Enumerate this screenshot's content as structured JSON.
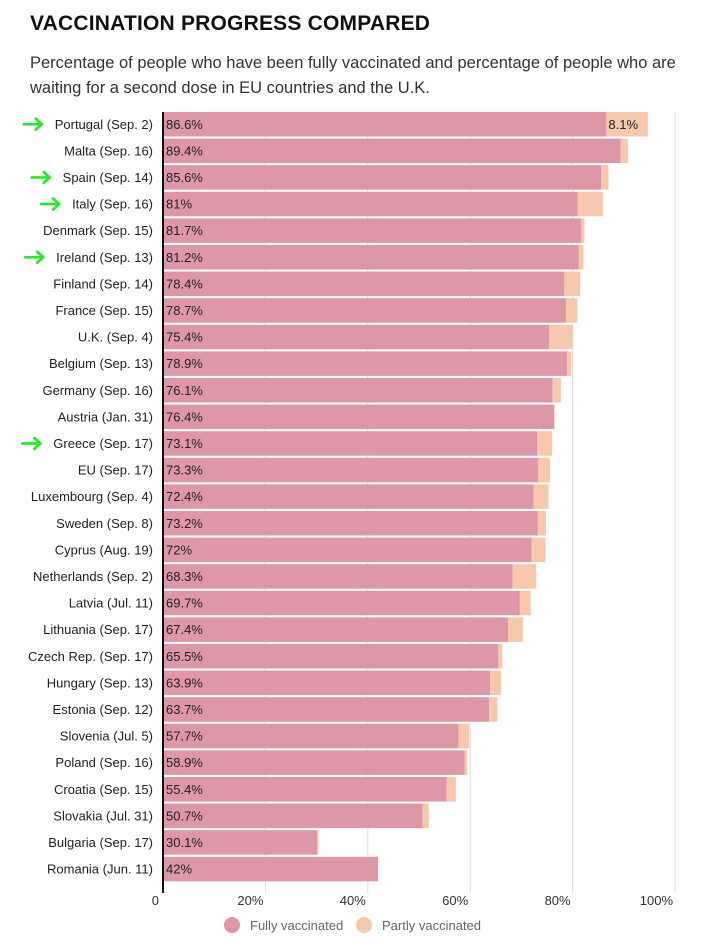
{
  "title": "VACCINATION PROGRESS COMPARED",
  "subtitle": "Percentage of people who have been fully vaccinated and percentage of people who are waiting for a second dose in EU countries and the U.K.",
  "colors": {
    "fully": "#de97a6",
    "partly": "#f6c8ac",
    "arrow": "#1df01d",
    "axis": "#111111",
    "grid": "#dddddd"
  },
  "legend": {
    "fully_label": "Fully vaccinated",
    "partly_label": "Partly vaccinated"
  },
  "chart_data": {
    "type": "bar",
    "orientation": "horizontal",
    "stacked": true,
    "xlim": [
      0,
      100
    ],
    "x_ticks": [
      "0",
      "20%",
      "40%",
      "60%",
      "80%",
      "100%"
    ],
    "grid": true,
    "legend_position": "bottom",
    "categories": [
      "Portugal (Sep. 2)",
      "Malta (Sep. 16)",
      "Spain (Sep. 14)",
      "Italy (Sep. 16)",
      "Denmark (Sep. 15)",
      "Ireland (Sep. 13)",
      "Finland (Sep. 14)",
      "France (Sep. 15)",
      "U.K. (Sep. 4)",
      "Belgium (Sep. 13)",
      "Germany (Sep. 16)",
      "Austria (Jan. 31)",
      "Greece (Sep. 17)",
      "EU (Sep. 17)",
      "Luxembourg (Sep. 4)",
      "Sweden (Sep. 8)",
      "Cyprus (Aug. 19)",
      "Netherlands (Sep. 2)",
      "Latvia (Jul. 11)",
      "Lithuania (Sep. 17)",
      "Czech Rep. (Sep. 17)",
      "Hungary (Sep. 13)",
      "Estonia (Sep. 12)",
      "Slovenia (Jul. 5)",
      "Poland (Sep. 16)",
      "Croatia (Sep. 15)",
      "Slovakia (Jul. 31)",
      "Bulgaria (Sep. 17)",
      "Romania (Jun. 11)"
    ],
    "highlighted": [
      true,
      false,
      true,
      true,
      false,
      true,
      false,
      false,
      false,
      false,
      false,
      false,
      true,
      false,
      false,
      false,
      false,
      false,
      false,
      false,
      false,
      false,
      false,
      false,
      false,
      false,
      false,
      false,
      false
    ],
    "series": [
      {
        "name": "Fully vaccinated",
        "values": [
          86.6,
          89.4,
          85.6,
          81,
          81.7,
          81.2,
          78.4,
          78.7,
          75.4,
          78.9,
          76.1,
          76.4,
          73.1,
          73.3,
          72.4,
          73.2,
          72,
          68.3,
          69.7,
          67.4,
          65.5,
          63.9,
          63.7,
          57.7,
          58.9,
          55.4,
          50.7,
          30.1,
          42
        ],
        "labels": [
          "86.6%",
          "89.4%",
          "85.6%",
          "81%",
          "81.7%",
          "81.2%",
          "78.4%",
          "78.7%",
          "75.4%",
          "78.9%",
          "76.1%",
          "76.4%",
          "73.1%",
          "73.3%",
          "72.4%",
          "73.2%",
          "72%",
          "68.3%",
          "69.7%",
          "67.4%",
          "65.5%",
          "63.9%",
          "63.7%",
          "57.7%",
          "58.9%",
          "55.4%",
          "50.7%",
          "30.1%",
          "42%"
        ]
      },
      {
        "name": "Partly vaccinated",
        "values": [
          8.1,
          1.4,
          1.4,
          4.9,
          0.6,
          0.9,
          3.1,
          2.2,
          4.6,
          0.8,
          1.6,
          0.1,
          2.9,
          2.3,
          2.9,
          1.6,
          2.7,
          4.6,
          2.1,
          2.9,
          0.8,
          2.1,
          1.6,
          2.1,
          0.5,
          1.8,
          1.2,
          0.3,
          0
        ],
        "labels": [
          "8.1%",
          "",
          "",
          "",
          "",
          "",
          "",
          "",
          "",
          "",
          "",
          "",
          "",
          "",
          "",
          "",
          "",
          "",
          "",
          "",
          "",
          "",
          "",
          "",
          "",
          "",
          "",
          "",
          ""
        ]
      }
    ]
  }
}
